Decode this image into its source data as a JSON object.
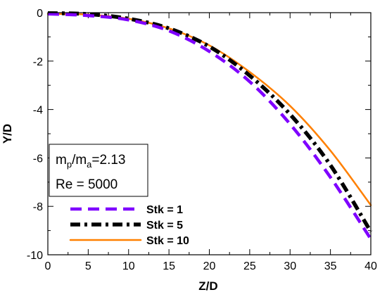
{
  "chart_data": {
    "type": "line",
    "title": "",
    "xlabel": "Z/D",
    "ylabel": "Y/D",
    "xlim": [
      0,
      40
    ],
    "ylim": [
      -10,
      0
    ],
    "xticks": [
      0,
      5,
      10,
      15,
      20,
      25,
      30,
      35,
      40
    ],
    "yticks": [
      0,
      -2,
      -4,
      -6,
      -8,
      -10
    ],
    "grid": false,
    "legend_position": "bottom-left",
    "annotation": {
      "ratio_main": "m",
      "ratio_sub1": "p",
      "ratio_sep": "/m",
      "ratio_sub2": "a",
      "ratio_value": "=2.13",
      "reynolds": "Re = 5000"
    },
    "series": [
      {
        "name": "Stk = 1",
        "color": "#7f00ff",
        "style": "dashed",
        "x": [
          0,
          5,
          10,
          15,
          20,
          25,
          30,
          35,
          40
        ],
        "y": [
          -0.05,
          -0.12,
          -0.3,
          -0.75,
          -1.6,
          -2.85,
          -4.6,
          -6.8,
          -9.35
        ]
      },
      {
        "name": "Stk = 5",
        "color": "#000000",
        "style": "dashdot",
        "x": [
          0,
          5,
          10,
          15,
          20,
          25,
          30,
          35,
          40
        ],
        "y": [
          -0.02,
          -0.06,
          -0.25,
          -0.65,
          -1.4,
          -2.6,
          -4.2,
          -6.3,
          -9.05
        ]
      },
      {
        "name": "Stk = 10",
        "color": "#ff8000",
        "style": "solid",
        "x": [
          0,
          5,
          10,
          15,
          20,
          25,
          30,
          35,
          40
        ],
        "y": [
          -0.05,
          -0.08,
          -0.25,
          -0.65,
          -1.35,
          -2.45,
          -3.85,
          -5.7,
          -7.95
        ]
      }
    ]
  }
}
